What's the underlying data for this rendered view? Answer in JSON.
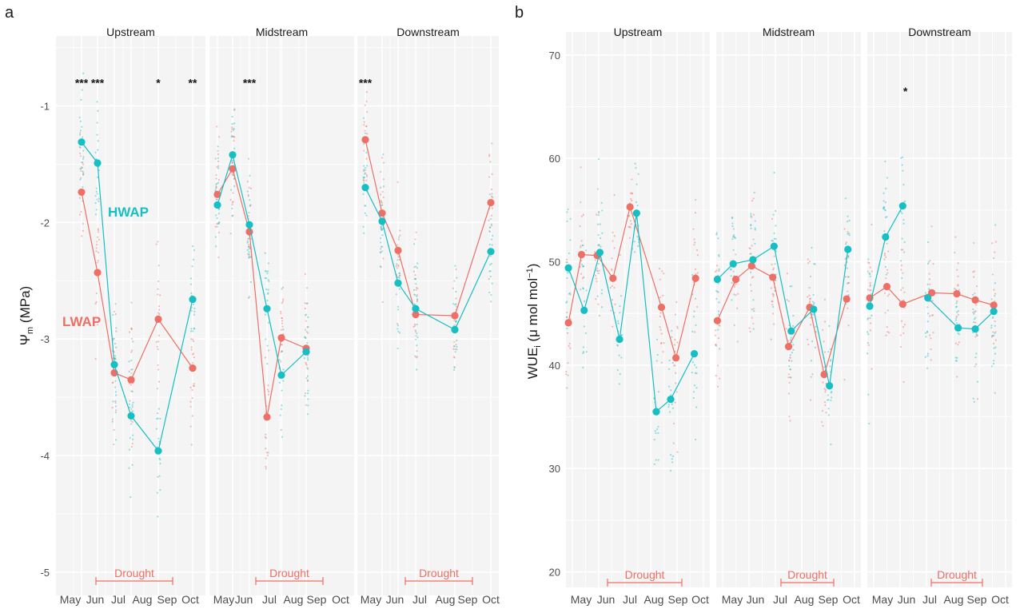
{
  "colors": {
    "lwap": "#ED6F65",
    "hwap": "#15BFC4",
    "panel_bg": "#F4F4F4",
    "grid": "#FFFFFF",
    "text": "#1a1a1a",
    "axis_text": "#4d4d4d"
  },
  "chart_data": [
    {
      "type": "line",
      "panel_label": "a",
      "ylabel": "Ψm (MPa)",
      "ylabel_main": "Ψ",
      "ylabel_sub": "m",
      "ylabel_unit": " (MPa)",
      "ylim": [
        -5.2,
        -0.4
      ],
      "y_ticks": [
        -5,
        -4,
        -3,
        -2,
        -1
      ],
      "y_tick_labels": [
        "-5",
        "-4",
        "-3",
        "-2",
        "-1"
      ],
      "x_ticks": [
        "May",
        "Jun",
        "Jul",
        "Aug",
        "Sep",
        "Oct"
      ],
      "facets": [
        "Upstream",
        "Midstream",
        "Downstream"
      ],
      "series_labels": [
        "HWAP",
        "LWAP"
      ],
      "drought_label": "Drought",
      "drought_range": [
        1.5,
        4.5
      ],
      "x": [
        0,
        1,
        2,
        3,
        4,
        5
      ],
      "series": [
        {
          "name": "LWAP",
          "facet_values": [
            [
              -1.74,
              -2.43,
              -3.29,
              -3.35,
              -2.83,
              -3.25
            ],
            [
              -1.76,
              -1.54,
              -2.08,
              -3.67,
              -2.99,
              -3.08
            ],
            [
              -1.29,
              -1.92,
              -2.24,
              -2.79,
              -2.8,
              -1.83
            ]
          ]
        },
        {
          "name": "HWAP",
          "facet_values": [
            [
              -1.31,
              -1.49,
              -3.22,
              -3.66,
              -3.96,
              -2.66
            ],
            [
              -1.85,
              -1.42,
              -2.02,
              -2.74,
              -3.31,
              -3.11
            ],
            [
              -1.7,
              -1.99,
              -2.52,
              -2.74,
              -2.92,
              -2.25
            ]
          ]
        }
      ],
      "extra_points": {
        "LWAP": [
          [
            -3.3,
            4.35
          ],
          [
            -3.5,
            3.25
          ],
          [
            -3.56,
            4.0
          ],
          [
            -3.04,
            2.25
          ],
          [
            -2.98,
            4.3
          ]
        ],
        "HWAP": [
          [
            -3.5,
            4.3
          ],
          [
            -2.61,
            3.2
          ],
          [
            -3.48,
            1.85
          ],
          [
            -2.09,
            1.1
          ],
          [
            -3.44,
            4.25
          ]
        ]
      },
      "significance": [
        {
          "facet": 0,
          "x": 0,
          "label": "***"
        },
        {
          "facet": 0,
          "x": 1,
          "label": "***"
        },
        {
          "facet": 0,
          "x": 4,
          "label": "*"
        },
        {
          "facet": 0,
          "x": 5,
          "label": "**"
        },
        {
          "facet": 1,
          "x": 2,
          "label": "***"
        },
        {
          "facet": 2,
          "x": 0,
          "label": "***"
        }
      ]
    },
    {
      "type": "line",
      "panel_label": "b",
      "ylabel": "WUEi (μ mol mol−1)",
      "ylabel_main": "WUE",
      "ylabel_sub": "i",
      "ylabel_mid": " (μ mol mol",
      "ylabel_sup": "−1",
      "ylabel_end": ")",
      "ylim": [
        18.5,
        73
      ],
      "y_ticks": [
        20,
        30,
        40,
        50,
        60,
        70
      ],
      "y_tick_labels": [
        "20",
        "30",
        "40",
        "50",
        "60",
        "70"
      ],
      "x_ticks": [
        "May",
        "Jun",
        "Jul",
        "Aug",
        "Sep",
        "Oct"
      ],
      "facets": [
        "Upstream",
        "Midstream",
        "Downstream"
      ],
      "drought_label": "Drought",
      "significance": [
        {
          "facet": 2,
          "x": 1.2,
          "label": "*"
        }
      ],
      "lines": {
        "LWAP": [
          [
            [
              -0.15,
              44.1
            ],
            [
              0.35,
              50.7
            ],
            [
              0.95,
              50.6
            ],
            [
              1.55,
              48.4
            ],
            [
              2.2,
              55.3
            ],
            [
              3.4,
              45.6
            ],
            [
              3.95,
              40.7
            ],
            [
              4.7,
              48.4
            ]
          ],
          [
            [
              -0.2,
              44.3
            ],
            [
              0.5,
              48.3
            ],
            [
              1.1,
              49.6
            ],
            [
              1.9,
              48.5
            ],
            [
              2.5,
              41.8
            ],
            [
              3.3,
              45.6
            ],
            [
              3.85,
              39.1
            ],
            [
              4.7,
              46.4
            ]
          ],
          [
            [
              -0.15,
              46.5
            ],
            [
              0.5,
              47.6
            ],
            [
              1.1,
              45.9
            ],
            [
              2.2,
              47.0
            ],
            [
              3.15,
              46.9
            ],
            [
              3.85,
              46.3
            ],
            [
              4.55,
              45.8
            ]
          ]
        ],
        "HWAP": [
          [
            [
              -0.15,
              49.4
            ],
            [
              0.45,
              45.3
            ],
            [
              1.05,
              50.9
            ],
            [
              1.8,
              42.5
            ],
            [
              2.45,
              54.7
            ],
            [
              3.2,
              35.5
            ],
            [
              3.75,
              36.7
            ],
            [
              4.65,
              41.1
            ]
          ],
          [
            [
              -0.2,
              48.3
            ],
            [
              0.4,
              49.8
            ],
            [
              1.15,
              50.2
            ],
            [
              1.95,
              51.5
            ],
            [
              2.6,
              43.3
            ],
            [
              3.45,
              45.4
            ],
            [
              4.05,
              38.0
            ],
            [
              4.75,
              51.2
            ]
          ],
          [
            [
              -0.15,
              45.7
            ],
            [
              0.45,
              52.4
            ],
            [
              1.1,
              55.4
            ]
          ],
          [
            [
              2.05,
              46.5
            ],
            [
              3.2,
              43.6
            ],
            [
              3.85,
              43.5
            ],
            [
              4.55,
              45.2
            ]
          ]
        ]
      }
    }
  ]
}
